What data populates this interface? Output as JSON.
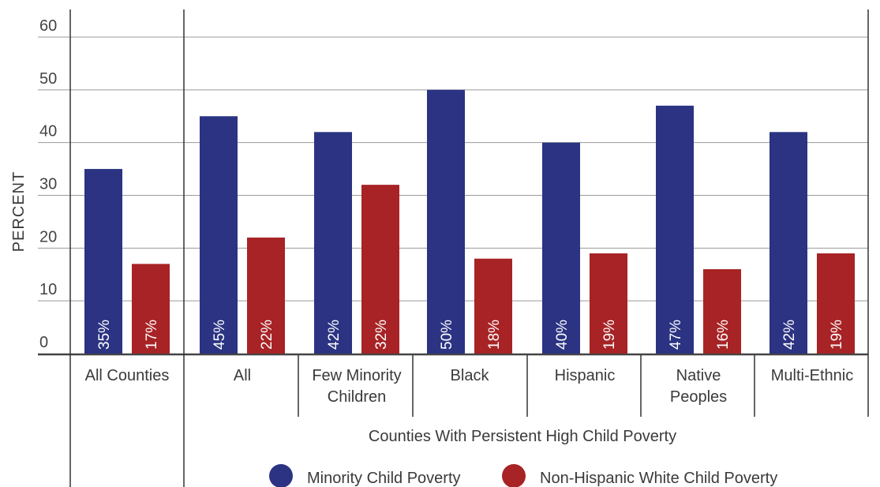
{
  "chart_data": {
    "type": "bar",
    "ylabel": "PERCENT",
    "ylim": [
      0,
      60
    ],
    "yticks": [
      "0",
      "10",
      "20",
      "30",
      "40",
      "50",
      "60"
    ],
    "grid": true,
    "categories": [
      [
        "All Counties"
      ],
      [
        "All"
      ],
      [
        "Few Minority",
        "Children"
      ],
      [
        "Black"
      ],
      [
        "Hispanic"
      ],
      [
        "Native",
        "Peoples"
      ],
      [
        "Multi-Ethnic"
      ]
    ],
    "group_label": "Counties With Persistent High Child Poverty",
    "series": [
      {
        "name": "Minority Child Poverty",
        "color": "#2b3382",
        "values": [
          35,
          45,
          42,
          50,
          40,
          47,
          42
        ],
        "labels": [
          "35%",
          "45%",
          "42%",
          "50%",
          "40%",
          "47%",
          "42%"
        ]
      },
      {
        "name": "Non-Hispanic White Child Poverty",
        "color": "#a72325",
        "values": [
          17,
          22,
          32,
          18,
          19,
          16,
          19
        ],
        "labels": [
          "17%",
          "22%",
          "32%",
          "18%",
          "19%",
          "16%",
          "19%"
        ]
      }
    ],
    "legend_position": "bottom"
  }
}
